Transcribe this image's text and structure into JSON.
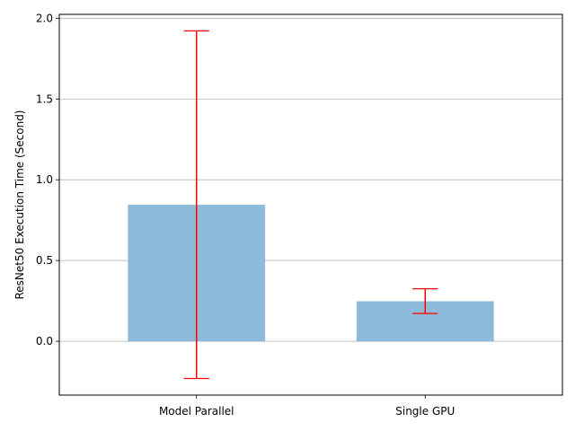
{
  "chart_data": {
    "type": "bar",
    "categories": [
      "Model Parallel",
      "Single GPU"
    ],
    "values": [
      0.845,
      0.248
    ],
    "error_low": [
      -0.23,
      0.172
    ],
    "error_high": [
      1.922,
      0.325
    ],
    "title": "",
    "xlabel": "",
    "ylabel": "ResNet50 Execution Time (Second)",
    "ylim": [
      -0.333,
      2.024
    ],
    "yticks": [
      0.0,
      0.5,
      1.0,
      1.5,
      2.0
    ],
    "ytick_labels": [
      "0.0",
      "0.5",
      "1.0",
      "1.5",
      "2.0"
    ],
    "grid": "y",
    "bar_color": "#8ebad9",
    "error_color": "#ff0000",
    "grid_color": "#b0b0b0"
  }
}
